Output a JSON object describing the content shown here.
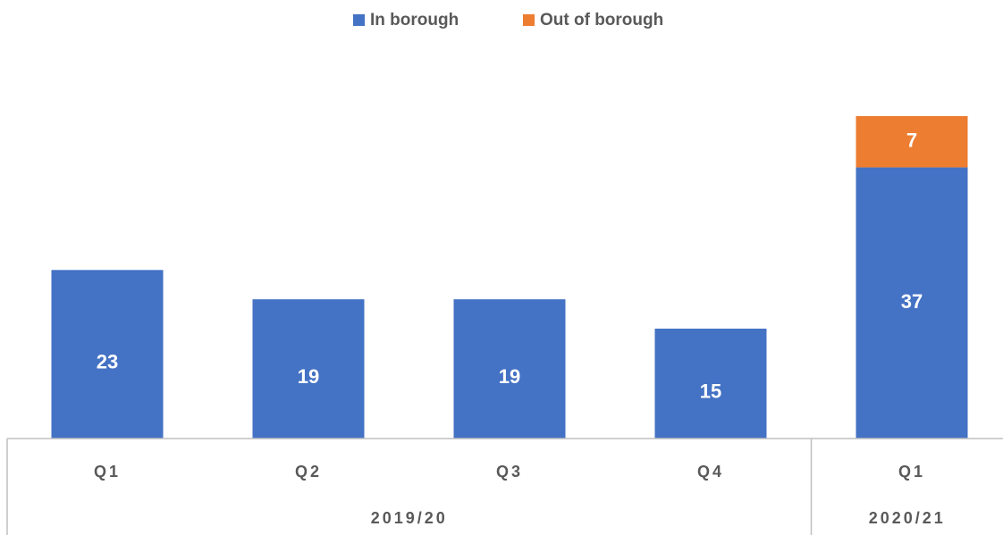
{
  "chart_data": {
    "type": "stacked-bar",
    "groups": [
      {
        "name": "2019/20",
        "categories": [
          "Q1",
          "Q2",
          "Q3",
          "Q4"
        ]
      },
      {
        "name": "2020/21",
        "categories": [
          "Q1"
        ]
      }
    ],
    "series": [
      {
        "name": "In borough",
        "color": "#4472c4",
        "values": [
          23,
          19,
          19,
          15,
          37
        ]
      },
      {
        "name": "Out of borough",
        "color": "#ed7d31",
        "values": [
          null,
          null,
          null,
          null,
          7
        ]
      }
    ],
    "legend": "top",
    "grid": false
  }
}
